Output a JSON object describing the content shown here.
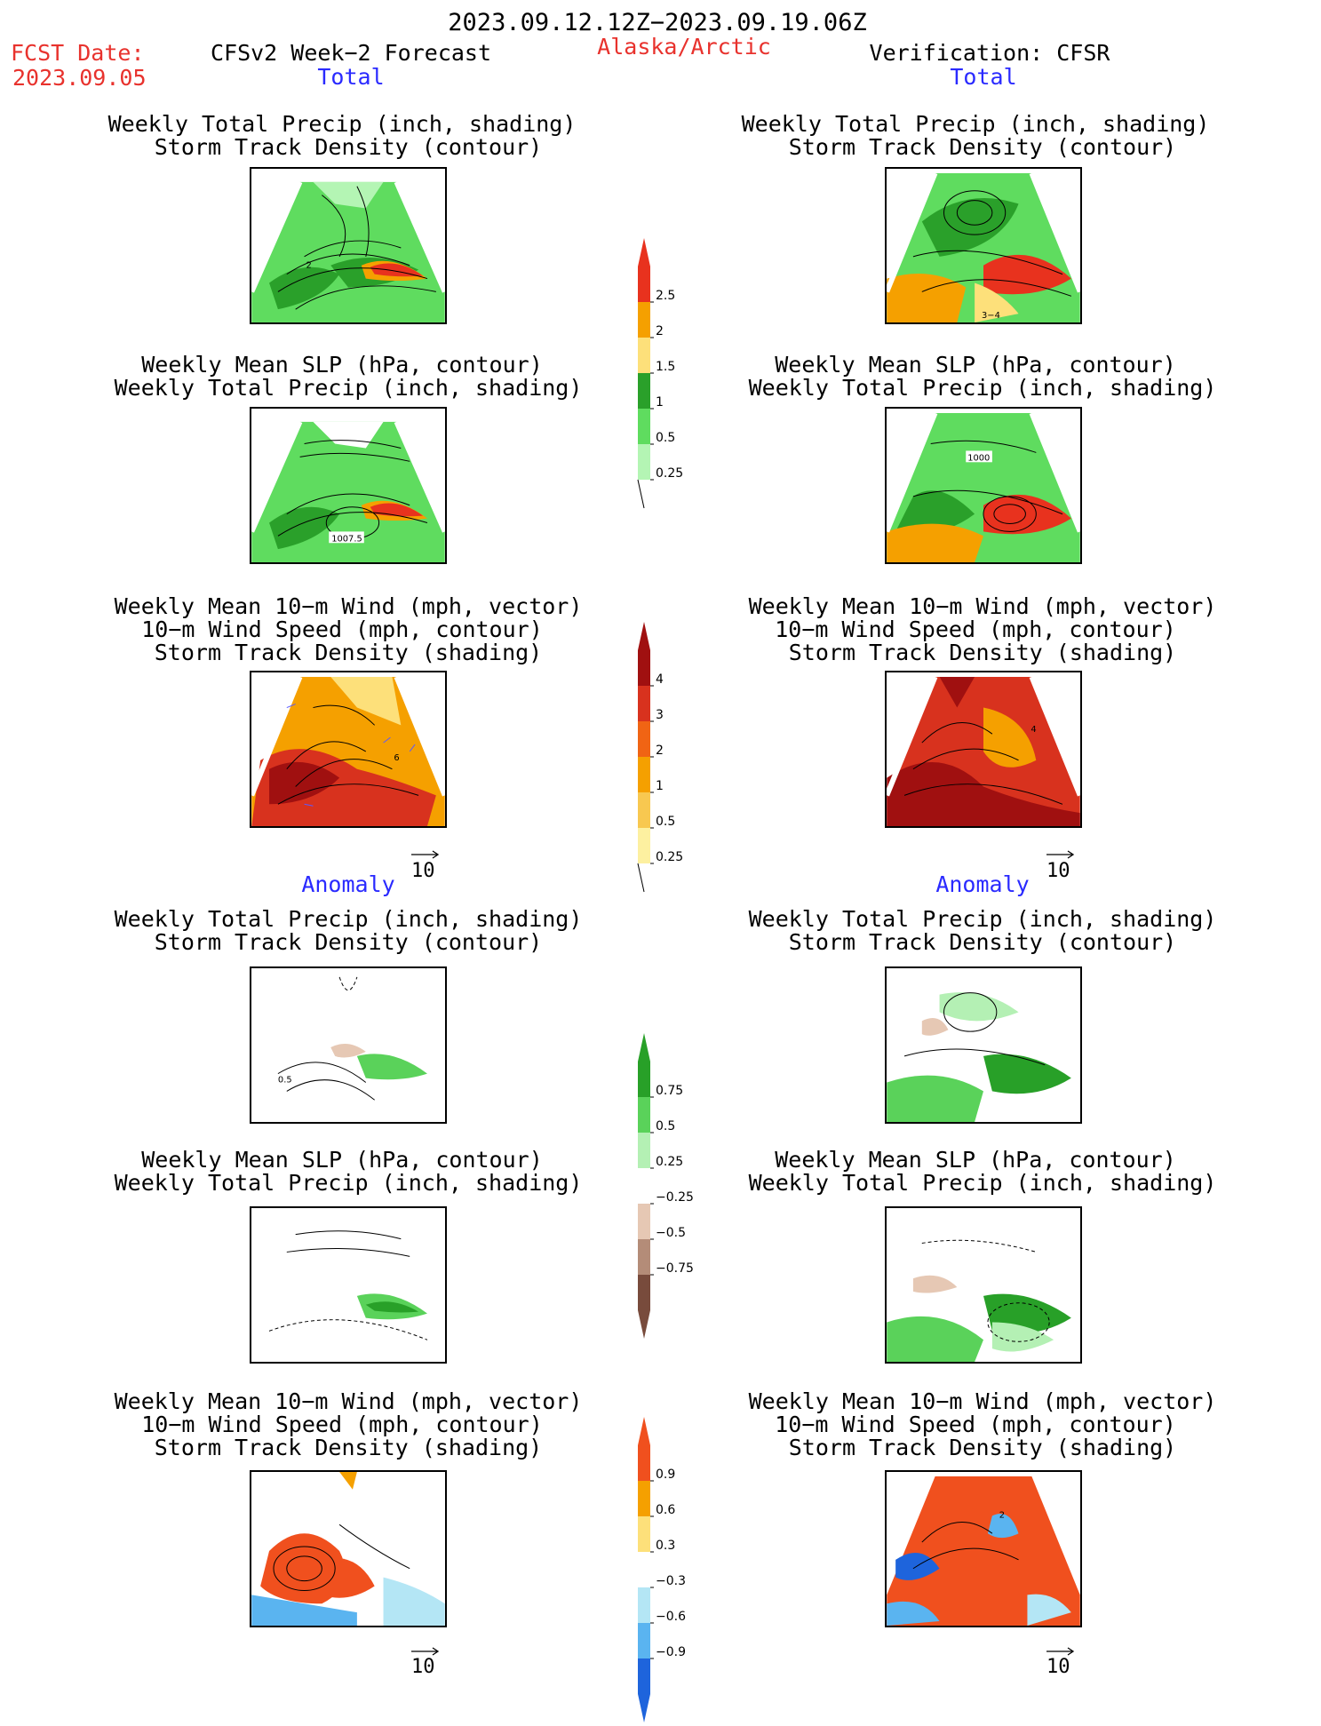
{
  "header": {
    "period": "2023.09.12.12Z−2023.09.19.06Z",
    "fcst_label": "FCST Date:",
    "fcst_date": "2023.09.05",
    "model": "CFSv2 Week−2 Forecast",
    "region": "Alaska/Arctic",
    "verification": "Verification: CFSR"
  },
  "sections": {
    "total_left": "Total",
    "total_right": "Total",
    "anomaly_left": "Anomaly",
    "anomaly_right": "Anomaly"
  },
  "titles": {
    "precip_std": [
      "Weekly Total Precip (inch, shading)",
      "Storm Track Density (contour)"
    ],
    "slp_precip": [
      "Weekly Mean SLP (hPa, contour)",
      "Weekly Total Precip (inch, shading)"
    ],
    "wind": [
      "Weekly Mean 10−m Wind (mph, vector)",
      "10−m Wind Speed (mph, contour)",
      "Storm Track Density (shading)"
    ]
  },
  "panel_labels": {
    "fc_total_precip": "2",
    "fc_total_slp": "1007.5",
    "fc_total_wind": "6",
    "ver_total_precip": "3−4",
    "ver_total_slp": "1000",
    "ver_total_wind": "4",
    "fc_anom_precip": "0.5",
    "ver_anom_wind": "2"
  },
  "vector_reference": "10",
  "colorbars": {
    "precip_total": {
      "labels": [
        "2.5",
        "2",
        "1.5",
        "1",
        "0.5",
        "0.25"
      ],
      "colors": [
        "#e8321e",
        "#f5a000",
        "#fde07a",
        "#2aa02a",
        "#5fdc5f",
        "#b4f5b4"
      ]
    },
    "storm_total": {
      "labels": [
        "4",
        "3",
        "2",
        "1",
        "0.5",
        "0.25"
      ],
      "colors": [
        "#a01010",
        "#d8321e",
        "#f06414",
        "#f5a000",
        "#f8c850",
        "#fdf0a0"
      ]
    },
    "precip_anom": {
      "labels": [
        "0.75",
        "0.5",
        "0.25",
        "−0.25",
        "−0.5",
        "−0.75"
      ],
      "colors": [
        "#28a028",
        "#5ad25a",
        "#b4f0b4",
        "#ffffff",
        "#e6c8b4",
        "#b48c78",
        "#784b3c"
      ]
    },
    "storm_anom": {
      "labels": [
        "0.9",
        "0.6",
        "0.3",
        "−0.3",
        "−0.6",
        "−0.9"
      ],
      "colors": [
        "#f0501e",
        "#f5a000",
        "#fde07a",
        "#ffffff",
        "#b4e6f5",
        "#5ab4f0",
        "#1e64dc"
      ]
    }
  }
}
